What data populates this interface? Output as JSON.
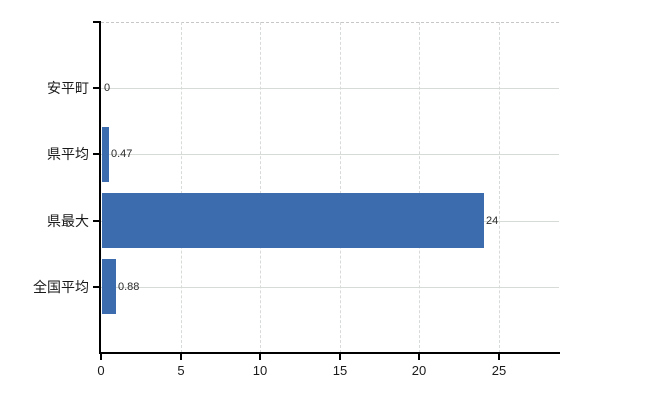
{
  "chart_data": {
    "type": "bar",
    "orientation": "horizontal",
    "title": "",
    "xlabel": "",
    "ylabel": "",
    "categories": [
      "安平町",
      "県平均",
      "県最大",
      "全国平均"
    ],
    "values": [
      0,
      0.47,
      24,
      0.88
    ],
    "value_labels": [
      "0",
      "0.47",
      "24",
      "0.88"
    ],
    "xticks": [
      0,
      5,
      10,
      15,
      20,
      25
    ],
    "xtick_labels": [
      "0",
      "5",
      "10",
      "15",
      "20",
      "25"
    ],
    "xlim": [
      0,
      28.8
    ],
    "grid": "on",
    "legend": "none"
  },
  "colors": {
    "bar": "#3c6cae",
    "gridline": "#d7dbd7",
    "top_border": "#c7c7c7",
    "axis": "#000000",
    "category_text": "#1a1a1a",
    "value_text": "#2b2b2b",
    "tick_text": "#1a1a1a",
    "background": "#ffffff"
  }
}
